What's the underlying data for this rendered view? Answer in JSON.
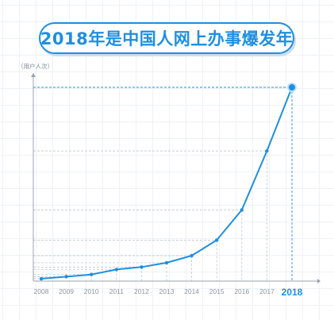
{
  "title": "2018年是中国人网上办事爆发年",
  "colors": {
    "accent": "#1e8fe0",
    "axis": "#9aa3ad",
    "guide": "#b8c0c8",
    "tick": "#8c96a0"
  },
  "chart_data": {
    "type": "line",
    "title": "2018年是中国人网上办事爆发年",
    "ylabel": "（用户人次）",
    "xlabel": "",
    "categories": [
      "2008",
      "2009",
      "2010",
      "2011",
      "2012",
      "2013",
      "2014",
      "2015",
      "2016",
      "2017",
      "2018"
    ],
    "series": [
      {
        "values": [
          0.4,
          1.5,
          2.6,
          5.2,
          6.5,
          8.7,
          12.4,
          20.5,
          36.2,
          66.9,
          100
        ]
      }
    ],
    "highlight_category": "2018",
    "yticks_shown": false,
    "ylim": [
      0,
      100
    ],
    "grid": true
  }
}
